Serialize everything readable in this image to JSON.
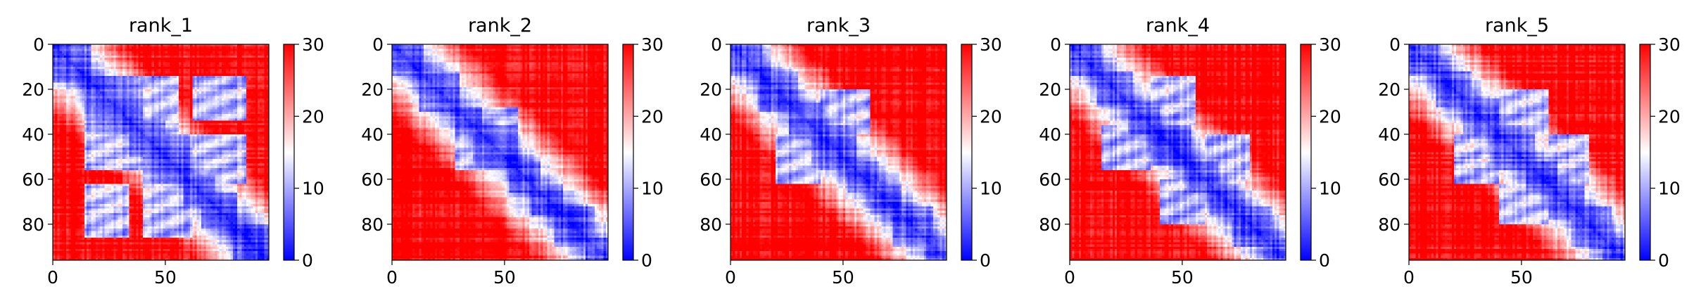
{
  "chart_data": [
    {
      "type": "heatmap",
      "title": "rank_1",
      "colormap": "bwr",
      "colorbar": {
        "min": 0,
        "max": 30,
        "ticks": [
          0,
          10,
          20,
          30
        ]
      },
      "x_ticks": [
        0,
        50
      ],
      "y_ticks": [
        0,
        20,
        40,
        60,
        80
      ],
      "matrix_size": 96,
      "blocks": [
        [
          0,
          17
        ],
        [
          14,
          40
        ],
        [
          34,
          50
        ],
        [
          40,
          62
        ],
        [
          58,
          72
        ],
        [
          66,
          82
        ],
        [
          80,
          96
        ]
      ],
      "off_diagonal_low_regions": [
        [
          [
            14,
            40
          ],
          [
            34,
            56
          ]
        ],
        [
          [
            40,
            62
          ],
          [
            58,
            86
          ]
        ],
        [
          [
            14,
            34
          ],
          [
            62,
            86
          ]
        ]
      ]
    },
    {
      "type": "heatmap",
      "title": "rank_2",
      "colormap": "bwr",
      "colorbar": {
        "min": 0,
        "max": 30,
        "ticks": [
          0,
          10,
          20,
          30
        ]
      },
      "x_ticks": [
        0,
        50
      ],
      "y_ticks": [
        0,
        20,
        40,
        60,
        80
      ],
      "matrix_size": 96,
      "blocks": [
        [
          0,
          14
        ],
        [
          12,
          30
        ],
        [
          28,
          40
        ],
        [
          36,
          56
        ],
        [
          52,
          66
        ],
        [
          62,
          76
        ],
        [
          72,
          90
        ],
        [
          86,
          96
        ]
      ],
      "off_diagonal_low_regions": [
        [
          [
            28,
            40
          ],
          [
            40,
            56
          ]
        ]
      ]
    },
    {
      "type": "heatmap",
      "title": "rank_3",
      "colormap": "bwr",
      "colorbar": {
        "min": 0,
        "max": 30,
        "ticks": [
          0,
          10,
          20,
          30
        ]
      },
      "x_ticks": [
        0,
        50
      ],
      "y_ticks": [
        0,
        20,
        40,
        60,
        80
      ],
      "matrix_size": 96,
      "blocks": [
        [
          0,
          14
        ],
        [
          12,
          30
        ],
        [
          26,
          42
        ],
        [
          36,
          56
        ],
        [
          52,
          66
        ],
        [
          62,
          76
        ],
        [
          72,
          90
        ],
        [
          86,
          96
        ]
      ],
      "off_diagonal_low_regions": [
        [
          [
            20,
            40
          ],
          [
            40,
            62
          ]
        ]
      ]
    },
    {
      "type": "heatmap",
      "title": "rank_4",
      "colormap": "bwr",
      "colorbar": {
        "min": 0,
        "max": 30,
        "ticks": [
          0,
          10,
          20,
          30
        ]
      },
      "x_ticks": [
        0,
        50
      ],
      "y_ticks": [
        0,
        20,
        40,
        60,
        80
      ],
      "matrix_size": 96,
      "blocks": [
        [
          0,
          14
        ],
        [
          12,
          28
        ],
        [
          26,
          40
        ],
        [
          36,
          54
        ],
        [
          52,
          66
        ],
        [
          62,
          76
        ],
        [
          72,
          90
        ],
        [
          86,
          96
        ]
      ],
      "off_diagonal_low_regions": [
        [
          [
            14,
            36
          ],
          [
            36,
            56
          ]
        ],
        [
          [
            40,
            60
          ],
          [
            60,
            80
          ]
        ]
      ]
    },
    {
      "type": "heatmap",
      "title": "rank_5",
      "colormap": "bwr",
      "colorbar": {
        "min": 0,
        "max": 30,
        "ticks": [
          0,
          10,
          20,
          30
        ]
      },
      "x_ticks": [
        0,
        50
      ],
      "y_ticks": [
        0,
        20,
        40,
        60,
        80
      ],
      "matrix_size": 96,
      "blocks": [
        [
          0,
          14
        ],
        [
          12,
          28
        ],
        [
          24,
          40
        ],
        [
          36,
          56
        ],
        [
          52,
          66
        ],
        [
          62,
          78
        ],
        [
          72,
          90
        ],
        [
          86,
          96
        ]
      ],
      "off_diagonal_low_regions": [
        [
          [
            20,
            40
          ],
          [
            40,
            62
          ]
        ],
        [
          [
            40,
            62
          ],
          [
            62,
            80
          ]
        ]
      ]
    }
  ]
}
